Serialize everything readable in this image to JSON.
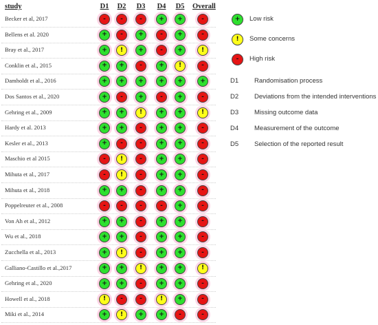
{
  "table": {
    "study_header": "study",
    "columns": [
      "D1",
      "D2",
      "D3",
      "D4",
      "D5",
      "Overall"
    ],
    "rows": [
      {
        "study": "Becker et al, 2017",
        "ratings": [
          "high",
          "high",
          "high",
          "low",
          "low",
          "high"
        ]
      },
      {
        "study": "Bellens et al. 2020",
        "ratings": [
          "low",
          "high",
          "low",
          "high",
          "low",
          "high"
        ]
      },
      {
        "study": "Bray et al., 2017",
        "ratings": [
          "low",
          "some",
          "low",
          "high",
          "low",
          "some"
        ]
      },
      {
        "study": "Conklin et al., 2015",
        "ratings": [
          "low",
          "low",
          "high",
          "low",
          "some",
          "high"
        ]
      },
      {
        "study": "Damholdt et al., 2016",
        "ratings": [
          "low",
          "low",
          "low",
          "low",
          "low",
          "low"
        ]
      },
      {
        "study": "Dos Santos et al., 2020",
        "ratings": [
          "low",
          "high",
          "low",
          "high",
          "low",
          "high"
        ]
      },
      {
        "study": "Gehring et al., 2009",
        "ratings": [
          "low",
          "low",
          "some",
          "low",
          "low",
          "some"
        ]
      },
      {
        "study": "Hardy et al. 2013",
        "ratings": [
          "low",
          "low",
          "high",
          "low",
          "low",
          "high"
        ]
      },
      {
        "study": "Kesler et al., 2013",
        "ratings": [
          "low",
          "high",
          "high",
          "low",
          "low",
          "high"
        ]
      },
      {
        "study": "Maschio et al 2015",
        "ratings": [
          "high",
          "some",
          "high",
          "low",
          "low",
          "high"
        ]
      },
      {
        "study": "Mihuta et al., 2017",
        "ratings": [
          "high",
          "some",
          "high",
          "low",
          "low",
          "high"
        ]
      },
      {
        "study": "Mihuta et al., 2018",
        "ratings": [
          "low",
          "low",
          "high",
          "low",
          "low",
          "high"
        ]
      },
      {
        "study": "Poppelreuter et al., 2008",
        "ratings": [
          "high",
          "high",
          "high",
          "high",
          "low",
          "high"
        ]
      },
      {
        "study": "Von Ah et al., 2012",
        "ratings": [
          "low",
          "low",
          "high",
          "low",
          "low",
          "high"
        ]
      },
      {
        "study": "Wu et al.,  2018",
        "ratings": [
          "low",
          "low",
          "high",
          "low",
          "low",
          "high"
        ]
      },
      {
        "study": "Zucchella et al., 2013",
        "ratings": [
          "low",
          "some",
          "high",
          "low",
          "low",
          "high"
        ]
      },
      {
        "study": "Galliano-Castillo et al.,2017",
        "ratings": [
          "low",
          "low",
          "some",
          "low",
          "low",
          "some"
        ]
      },
      {
        "study": "Gehring et al., 2020",
        "ratings": [
          "low",
          "low",
          "high",
          "low",
          "low",
          "high"
        ]
      },
      {
        "study": "Howell et al., 2018",
        "ratings": [
          "some",
          "high",
          "high",
          "some",
          "low",
          "high"
        ]
      },
      {
        "study": "Miki et al., 2014",
        "ratings": [
          "low",
          "some",
          "low",
          "low",
          "high",
          "high"
        ]
      }
    ]
  },
  "symbols": {
    "low": "+",
    "some": "!",
    "high": "-"
  },
  "colors": {
    "low": "#2ee02e",
    "some": "#ffff1a",
    "high": "#e61414"
  },
  "legend": [
    {
      "key": "low",
      "symbol": "+",
      "label": "Low risk"
    },
    {
      "key": "some",
      "symbol": "!",
      "label": "Some concerns"
    },
    {
      "key": "high",
      "symbol": "-",
      "label": "High risk"
    }
  ],
  "domains": [
    {
      "code": "D1",
      "desc": "Randomisation process"
    },
    {
      "code": "D2",
      "desc": "Deviations from the intended interventions"
    },
    {
      "code": "D3",
      "desc": "Missing outcome data"
    },
    {
      "code": "D4",
      "desc": "Measurement of the outcome"
    },
    {
      "code": "D5",
      "desc": "Selection of the reported result"
    }
  ]
}
